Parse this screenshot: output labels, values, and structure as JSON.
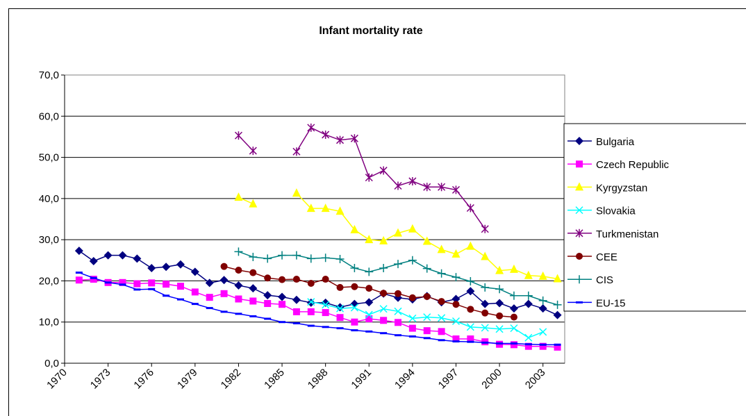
{
  "chart_data": {
    "type": "line",
    "title": "Infant mortality rate",
    "x": [
      1971,
      1972,
      1973,
      1974,
      1975,
      1976,
      1977,
      1978,
      1979,
      1980,
      1981,
      1982,
      1983,
      1984,
      1985,
      1986,
      1987,
      1988,
      1989,
      1990,
      1991,
      1992,
      1993,
      1994,
      1995,
      1996,
      1997,
      1998,
      1999,
      2000,
      2001,
      2002,
      2003,
      2004
    ],
    "xlim": [
      1970,
      2004.5
    ],
    "xticks": [
      1970,
      1973,
      1976,
      1979,
      1982,
      1985,
      1988,
      1991,
      1994,
      1997,
      2000,
      2003
    ],
    "ylim": [
      0,
      70
    ],
    "yticks": [
      {
        "value": 0,
        "label": "0,0"
      },
      {
        "value": 10,
        "label": "10,0"
      },
      {
        "value": 20,
        "label": "20,0"
      },
      {
        "value": 30,
        "label": "30,0"
      },
      {
        "value": 40,
        "label": "40,0"
      },
      {
        "value": 50,
        "label": "50,0"
      },
      {
        "value": 60,
        "label": "60,0"
      },
      {
        "value": 70,
        "label": "70,0"
      }
    ],
    "grid": true,
    "legend": "right",
    "series": [
      {
        "name": "Bulgaria",
        "color": "#000080",
        "marker": "diamond",
        "values": [
          27.3,
          24.8,
          26.2,
          26.2,
          25.4,
          23.1,
          23.4,
          24.0,
          22.2,
          19.5,
          20.2,
          18.9,
          18.2,
          16.5,
          16.1,
          15.4,
          14.7,
          14.7,
          13.6,
          14.4,
          14.8,
          16.9,
          15.9,
          15.5,
          16.3,
          14.8,
          15.6,
          17.5,
          14.4,
          14.6,
          13.3,
          14.4,
          13.3,
          11.7
        ]
      },
      {
        "name": "Czech Republic",
        "color": "#FF00FF",
        "marker": "square",
        "values": [
          20.2,
          20.4,
          19.6,
          19.6,
          19.3,
          19.5,
          19.2,
          18.7,
          17.3,
          16.0,
          16.9,
          15.6,
          15.1,
          14.5,
          14.3,
          12.5,
          12.5,
          12.3,
          11.1,
          10.0,
          10.8,
          10.4,
          9.9,
          8.5,
          7.9,
          7.7,
          5.9,
          5.9,
          5.2,
          4.6,
          4.5,
          4.1,
          4.1,
          3.9
        ]
      },
      {
        "name": "Kyrgyzstan",
        "color": "#FFFF00",
        "marker": "triangle",
        "values": [
          null,
          null,
          null,
          null,
          null,
          null,
          null,
          null,
          null,
          null,
          null,
          40.3,
          38.7,
          null,
          null,
          41.3,
          37.6,
          37.6,
          36.9,
          32.4,
          30.0,
          29.7,
          31.6,
          32.6,
          29.6,
          27.6,
          26.5,
          28.4,
          25.9,
          22.5,
          22.8,
          21.3,
          21.1,
          20.5
        ]
      },
      {
        "name": "Slovakia",
        "color": "#00FFFF",
        "marker": "x",
        "values": [
          null,
          null,
          null,
          null,
          null,
          null,
          null,
          null,
          null,
          null,
          null,
          null,
          null,
          null,
          null,
          null,
          14.9,
          14.2,
          13.3,
          13.5,
          11.8,
          13.2,
          12.6,
          10.9,
          11.2,
          11.0,
          10.2,
          8.8,
          8.6,
          8.3,
          8.5,
          6.2,
          7.6,
          null
        ]
      },
      {
        "name": "Turkmenistan",
        "color": "#800080",
        "marker": "star",
        "values": [
          null,
          null,
          null,
          null,
          null,
          null,
          null,
          null,
          null,
          null,
          null,
          55.3,
          51.6,
          null,
          null,
          51.4,
          57.2,
          55.5,
          54.2,
          54.6,
          45.1,
          46.8,
          43.1,
          44.2,
          42.8,
          42.8,
          42.1,
          37.7,
          32.6,
          null,
          null,
          null,
          null,
          null
        ]
      },
      {
        "name": "CEE",
        "color": "#800000",
        "marker": "circle",
        "values": [
          null,
          null,
          null,
          null,
          null,
          null,
          null,
          null,
          null,
          null,
          23.5,
          22.6,
          22.0,
          20.7,
          20.3,
          20.4,
          19.4,
          20.4,
          18.4,
          18.6,
          18.2,
          17.0,
          16.9,
          15.9,
          16.2,
          15.0,
          14.3,
          13.1,
          12.2,
          11.5,
          11.2,
          null,
          null,
          null
        ]
      },
      {
        "name": "CIS",
        "color": "#008080",
        "marker": "plus",
        "values": [
          null,
          null,
          null,
          null,
          null,
          null,
          null,
          null,
          null,
          null,
          null,
          27.1,
          25.8,
          25.4,
          26.2,
          26.2,
          25.4,
          25.6,
          25.3,
          23.1,
          22.2,
          23.1,
          24.1,
          25.0,
          23.0,
          21.8,
          20.9,
          19.9,
          18.4,
          18.0,
          16.4,
          16.4,
          15.2,
          14.2
        ]
      },
      {
        "name": "EU-15",
        "color": "#0000FF",
        "marker": "dash",
        "values": [
          22.0,
          20.7,
          19.6,
          19.1,
          17.9,
          18.0,
          16.4,
          15.5,
          14.4,
          13.4,
          12.5,
          12.0,
          11.4,
          10.8,
          10.0,
          9.7,
          9.1,
          8.8,
          8.5,
          8.0,
          7.7,
          7.3,
          6.8,
          6.5,
          6.1,
          5.6,
          5.3,
          5.2,
          5.0,
          4.8,
          4.8,
          4.6,
          4.5,
          4.5
        ]
      }
    ]
  }
}
